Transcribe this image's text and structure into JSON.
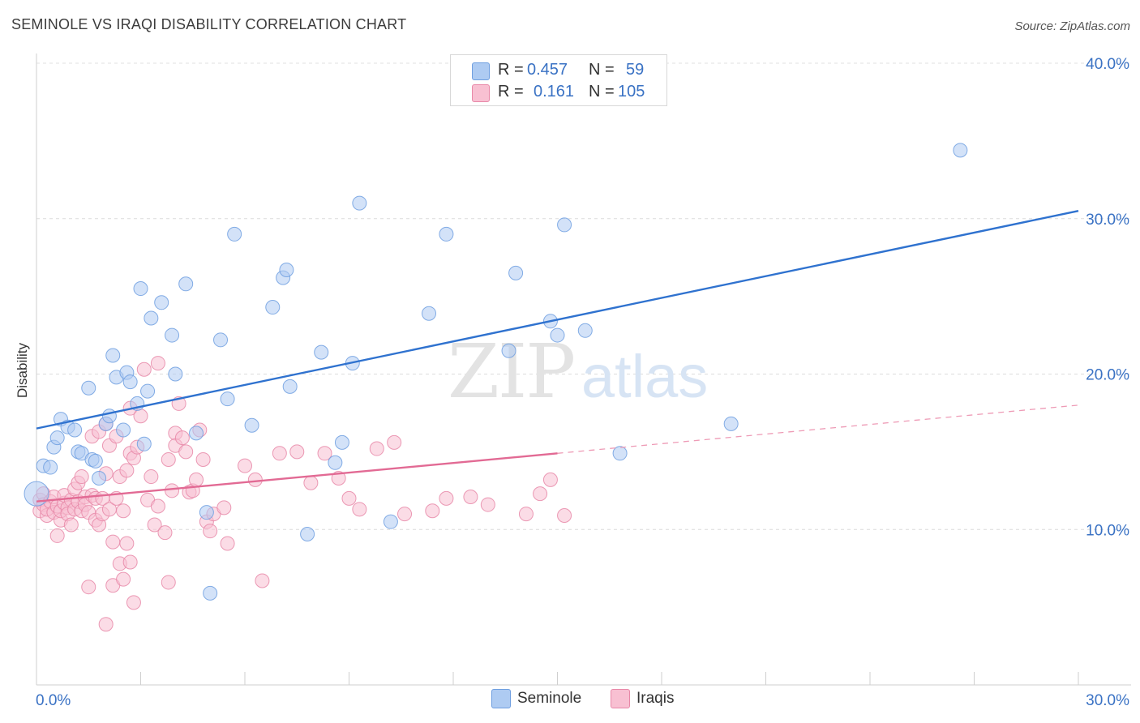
{
  "title": "SEMINOLE VS IRAQI DISABILITY CORRELATION CHART",
  "source": "Source: ZipAtlas.com",
  "watermark": {
    "zip": "ZIP",
    "atlas": "atlas"
  },
  "legend": {
    "rows": [
      {
        "r_label": "R =",
        "r_value": "0.457",
        "n_label": "N =",
        "n_value": "59",
        "color": "#aecbf2",
        "border": "#6f9fe0"
      },
      {
        "r_label": "R =",
        "r_value": "0.161",
        "n_label": "N =",
        "n_value": "105",
        "color": "#f8c0d2",
        "border": "#e888a8"
      }
    ]
  },
  "bottom_legend": [
    {
      "label": "Seminole",
      "color": "#aecbf2",
      "border": "#6f9fe0"
    },
    {
      "label": "Iraqis",
      "color": "#f8c0d2",
      "border": "#e888a8"
    }
  ],
  "chart_data": {
    "type": "scatter",
    "title": "SEMINOLE VS IRAQI DISABILITY CORRELATION CHART",
    "xlabel": "",
    "ylabel": "Disability",
    "xlim": [
      0,
      30
    ],
    "ylim": [
      0,
      40
    ],
    "x_ticks_labels": [
      "0.0%",
      "30.0%"
    ],
    "y_ticks": [
      10,
      20,
      30,
      40
    ],
    "y_tick_labels": [
      "10.0%",
      "20.0%",
      "30.0%",
      "40.0%"
    ],
    "grid": true,
    "series": [
      {
        "name": "Seminole",
        "color": "#6f9fe0",
        "fill": "#aecbf2",
        "trend": {
          "x0": 0,
          "y0": 16.5,
          "x1": 30,
          "y1": 30.5,
          "solid_until": 30
        },
        "points": [
          [
            0,
            12.3
          ],
          [
            0.2,
            14.1
          ],
          [
            0.4,
            14
          ],
          [
            0.5,
            15.3
          ],
          [
            0.6,
            15.9
          ],
          [
            0.7,
            17.1
          ],
          [
            0.9,
            16.6
          ],
          [
            1.1,
            16.4
          ],
          [
            1.2,
            15
          ],
          [
            1.3,
            14.9
          ],
          [
            1.5,
            19.1
          ],
          [
            1.6,
            14.5
          ],
          [
            1.7,
            14.4
          ],
          [
            1.8,
            13.3
          ],
          [
            2.0,
            16.8
          ],
          [
            2.1,
            17.3
          ],
          [
            2.2,
            21.2
          ],
          [
            2.3,
            19.8
          ],
          [
            2.5,
            16.4
          ],
          [
            2.6,
            20.1
          ],
          [
            2.7,
            19.5
          ],
          [
            2.9,
            18.1
          ],
          [
            3.0,
            25.5
          ],
          [
            3.1,
            15.5
          ],
          [
            3.2,
            18.9
          ],
          [
            3.3,
            23.6
          ],
          [
            3.6,
            24.6
          ],
          [
            3.9,
            22.5
          ],
          [
            4.0,
            20
          ],
          [
            4.3,
            25.8
          ],
          [
            4.6,
            16.2
          ],
          [
            4.9,
            11.1
          ],
          [
            5.0,
            5.9
          ],
          [
            5.3,
            22.2
          ],
          [
            5.5,
            18.4
          ],
          [
            5.7,
            29
          ],
          [
            6.2,
            16.7
          ],
          [
            6.8,
            24.3
          ],
          [
            7.1,
            26.2
          ],
          [
            7.2,
            26.7
          ],
          [
            7.3,
            19.2
          ],
          [
            7.8,
            9.7
          ],
          [
            8.2,
            21.4
          ],
          [
            8.6,
            14.3
          ],
          [
            8.8,
            15.6
          ],
          [
            9.1,
            20.7
          ],
          [
            9.3,
            31
          ],
          [
            10.2,
            10.5
          ],
          [
            11.3,
            23.9
          ],
          [
            11.8,
            29
          ],
          [
            13.6,
            21.5
          ],
          [
            13.8,
            26.5
          ],
          [
            14.8,
            23.4
          ],
          [
            15.0,
            22.5
          ],
          [
            15.2,
            29.6
          ],
          [
            15.8,
            22.8
          ],
          [
            16.8,
            14.9
          ],
          [
            20.0,
            16.8
          ],
          [
            26.6,
            34.4
          ]
        ]
      },
      {
        "name": "Iraqis",
        "color": "#e888a8",
        "fill": "#f8c0d2",
        "trend": {
          "x0": 0,
          "y0": 11.8,
          "x1": 30,
          "y1": 18.0,
          "solid_until": 15
        },
        "points": [
          [
            0.1,
            11.2
          ],
          [
            0.1,
            11.9
          ],
          [
            0.2,
            12.3
          ],
          [
            0.2,
            11.6
          ],
          [
            0.3,
            10.9
          ],
          [
            0.3,
            11.3
          ],
          [
            0.4,
            11.8
          ],
          [
            0.5,
            11.1
          ],
          [
            0.5,
            12.1
          ],
          [
            0.6,
            11.5
          ],
          [
            0.6,
            9.6
          ],
          [
            0.7,
            10.6
          ],
          [
            0.7,
            11.2
          ],
          [
            0.8,
            11.7
          ],
          [
            0.8,
            12.2
          ],
          [
            0.9,
            11.4
          ],
          [
            0.9,
            11.0
          ],
          [
            1.0,
            11.9
          ],
          [
            1.0,
            10.3
          ],
          [
            1.1,
            11.3
          ],
          [
            1.1,
            12.6
          ],
          [
            1.2,
            11.8
          ],
          [
            1.2,
            13.0
          ],
          [
            1.3,
            13.4
          ],
          [
            1.3,
            11.2
          ],
          [
            1.4,
            12.1
          ],
          [
            1.4,
            11.6
          ],
          [
            1.5,
            6.3
          ],
          [
            1.5,
            11.1
          ],
          [
            1.6,
            16.0
          ],
          [
            1.6,
            12.2
          ],
          [
            1.7,
            10.6
          ],
          [
            1.7,
            12.0
          ],
          [
            1.8,
            10.3
          ],
          [
            1.8,
            16.3
          ],
          [
            1.9,
            11.0
          ],
          [
            1.9,
            12.0
          ],
          [
            2.0,
            13.6
          ],
          [
            2.0,
            16.8
          ],
          [
            2.0,
            3.9
          ],
          [
            2.1,
            15.4
          ],
          [
            2.1,
            11.3
          ],
          [
            2.2,
            6.4
          ],
          [
            2.2,
            9.2
          ],
          [
            2.3,
            16.0
          ],
          [
            2.3,
            12.0
          ],
          [
            2.4,
            7.8
          ],
          [
            2.4,
            13.4
          ],
          [
            2.5,
            6.8
          ],
          [
            2.5,
            11.2
          ],
          [
            2.6,
            9.1
          ],
          [
            2.6,
            13.8
          ],
          [
            2.7,
            7.9
          ],
          [
            2.7,
            17.8
          ],
          [
            2.7,
            14.9
          ],
          [
            2.8,
            5.3
          ],
          [
            2.8,
            14.6
          ],
          [
            2.9,
            15.3
          ],
          [
            3.0,
            17.3
          ],
          [
            3.1,
            20.3
          ],
          [
            3.2,
            11.9
          ],
          [
            3.3,
            13.4
          ],
          [
            3.4,
            10.3
          ],
          [
            3.5,
            20.7
          ],
          [
            3.5,
            11.5
          ],
          [
            3.7,
            9.8
          ],
          [
            3.8,
            6.6
          ],
          [
            3.8,
            14.5
          ],
          [
            3.9,
            12.5
          ],
          [
            4.0,
            16.2
          ],
          [
            4.0,
            15.4
          ],
          [
            4.1,
            18.1
          ],
          [
            4.2,
            15.9
          ],
          [
            4.3,
            15.0
          ],
          [
            4.4,
            12.4
          ],
          [
            4.5,
            12.5
          ],
          [
            4.6,
            13.2
          ],
          [
            4.7,
            16.4
          ],
          [
            4.8,
            14.5
          ],
          [
            4.9,
            10.5
          ],
          [
            5.0,
            9.9
          ],
          [
            5.1,
            11.0
          ],
          [
            5.4,
            11.4
          ],
          [
            5.5,
            9.1
          ],
          [
            6.0,
            14.1
          ],
          [
            6.3,
            13.2
          ],
          [
            6.5,
            6.7
          ],
          [
            7.0,
            14.9
          ],
          [
            7.5,
            15.0
          ],
          [
            7.9,
            13.0
          ],
          [
            8.3,
            14.9
          ],
          [
            8.7,
            13.3
          ],
          [
            9.0,
            12.0
          ],
          [
            9.3,
            11.3
          ],
          [
            9.8,
            15.2
          ],
          [
            10.3,
            15.6
          ],
          [
            10.6,
            11.0
          ],
          [
            11.4,
            11.2
          ],
          [
            11.8,
            12.0
          ],
          [
            12.5,
            12.1
          ],
          [
            13.0,
            11.6
          ],
          [
            14.1,
            11.0
          ],
          [
            14.5,
            12.3
          ],
          [
            14.8,
            13.2
          ],
          [
            15.2,
            10.9
          ]
        ]
      }
    ]
  }
}
